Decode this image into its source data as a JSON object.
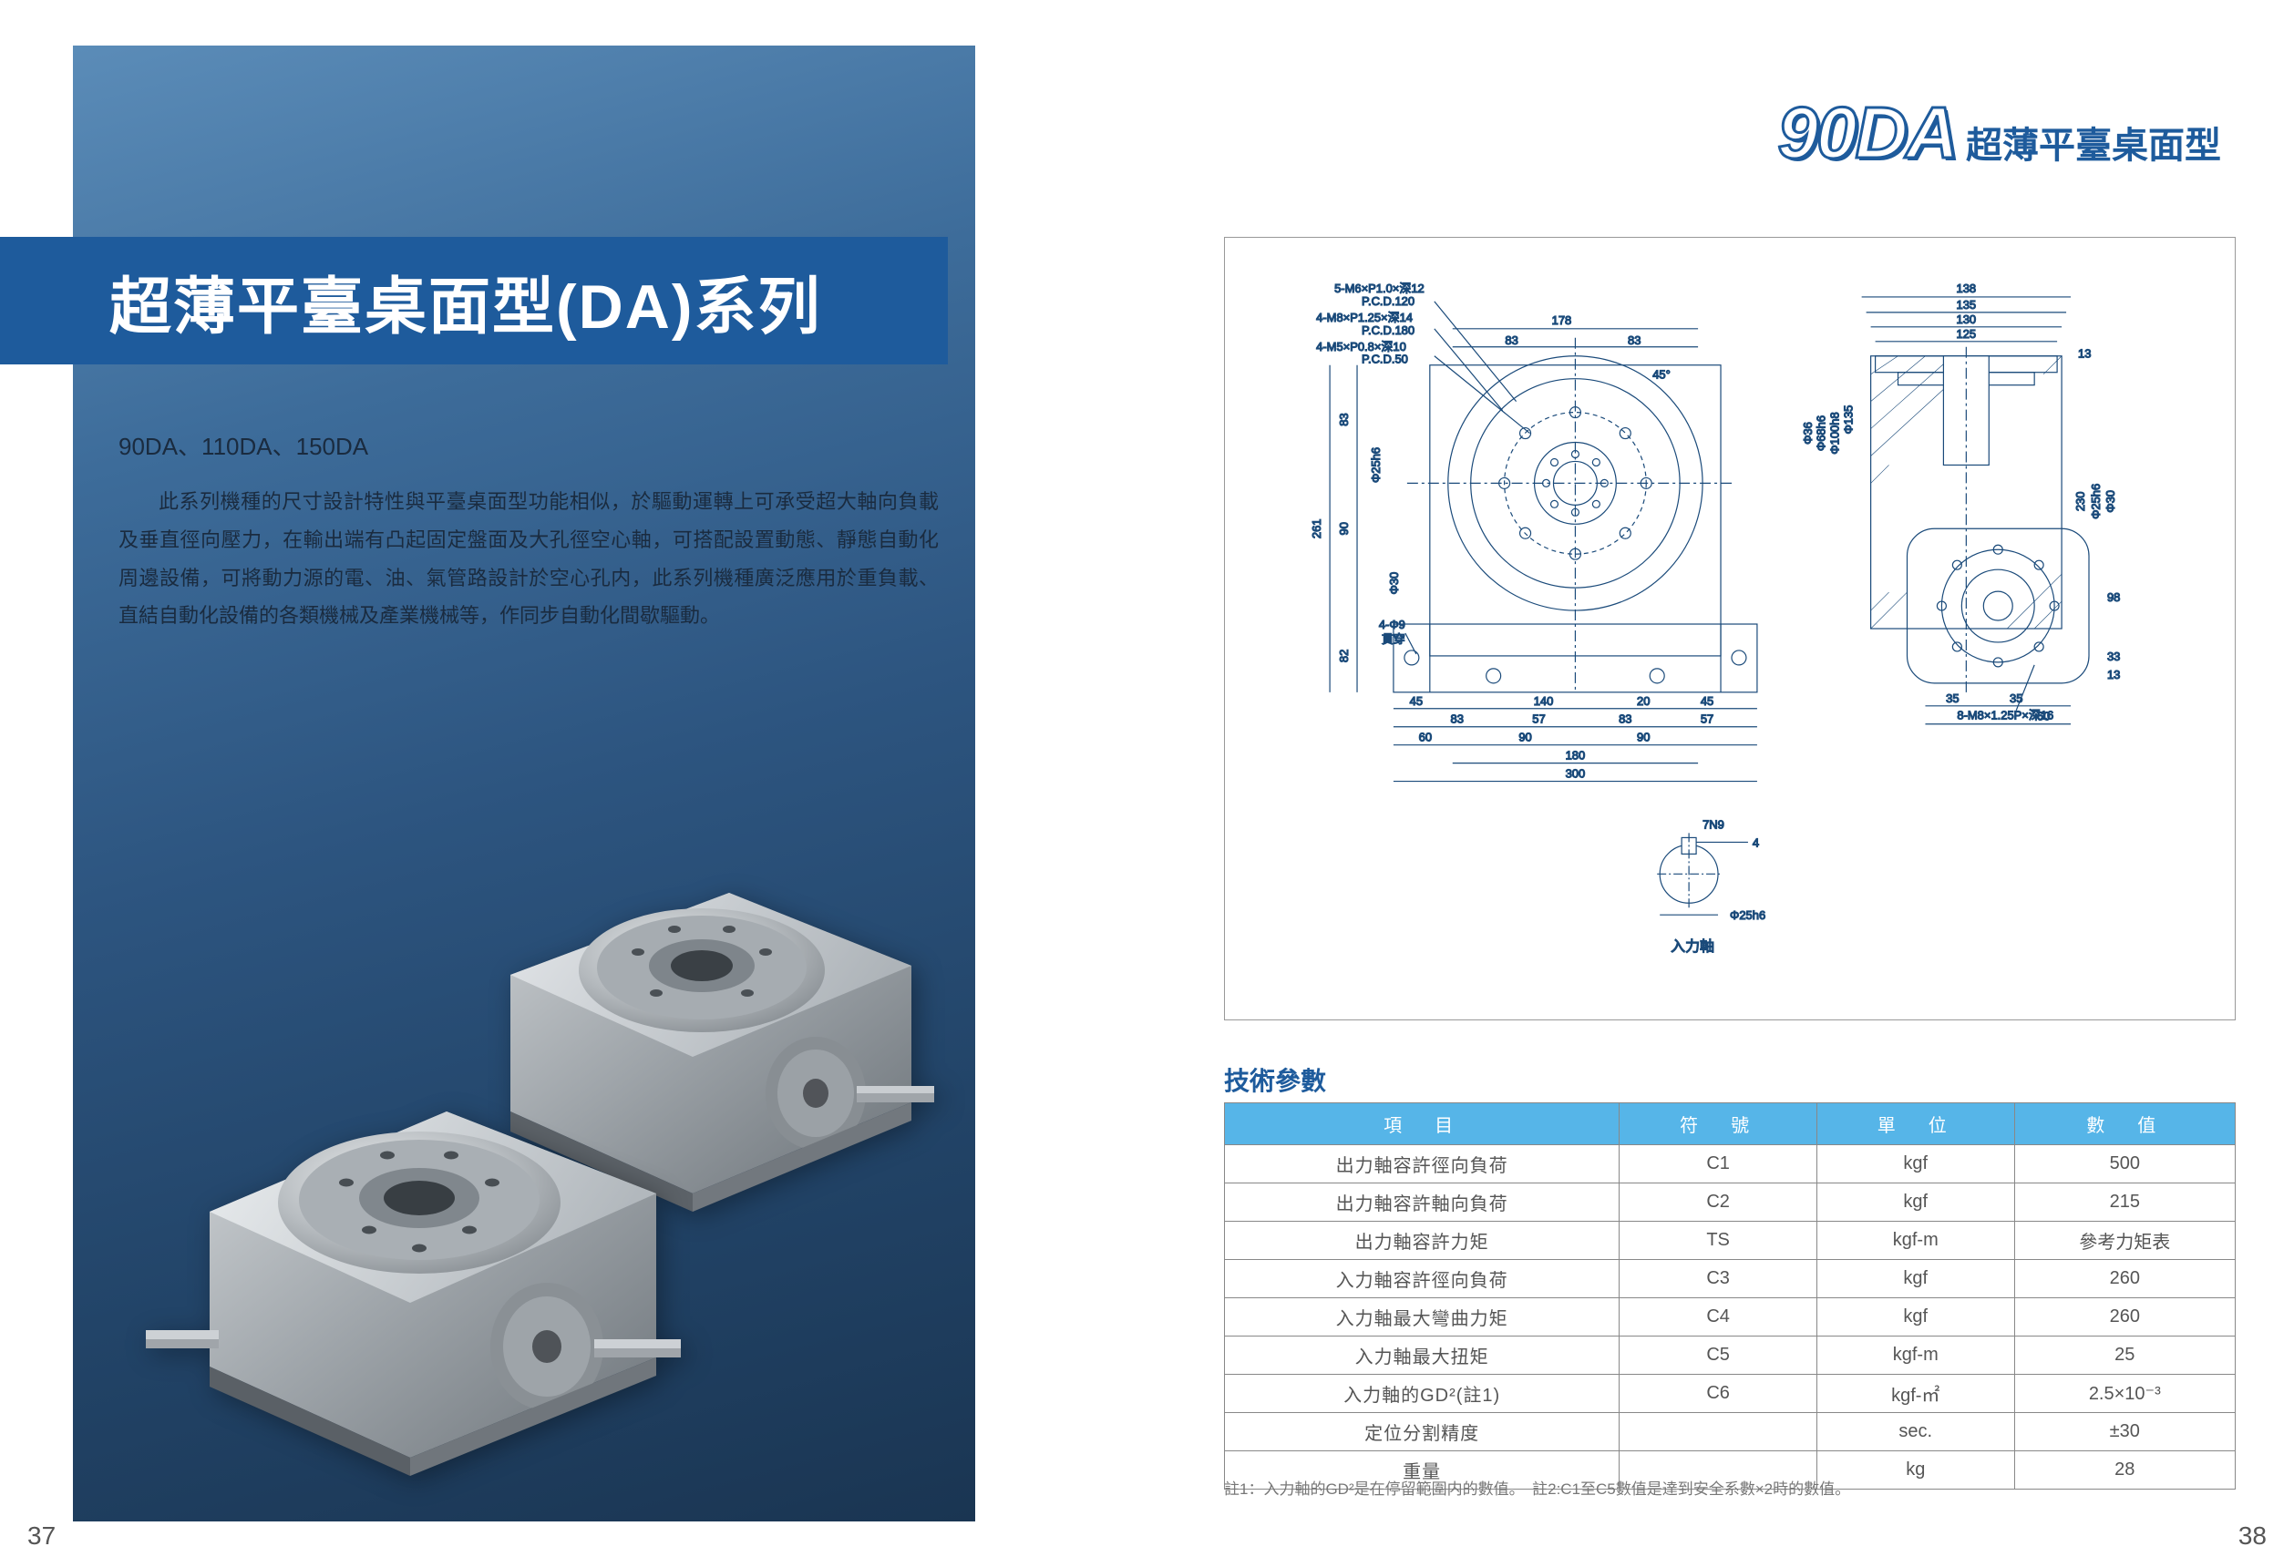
{
  "left": {
    "title": "超薄平臺桌面型(DA)系列",
    "subtitle": "90DA、110DA、150DA",
    "body": "此系列機種的尺寸設計特性與平臺桌面型功能相似，於驅動運轉上可承受超大軸向負載及垂直徑向壓力，在輸出端有凸起固定盤面及大孔徑空心軸，可搭配設置動態、靜態自動化周邊設備，可將動力源的電、油、氣管路設計於空心孔内，此系列機種廣泛應用於重負載、直結自動化設備的各類機械及產業機械等，作同步自動化間歇驅動。",
    "page_num": "37",
    "bg_gradient": [
      "#5b8cb8",
      "#1a3552"
    ],
    "title_band_color": "#1e5b9c"
  },
  "right": {
    "model_number": "90DA",
    "model_subtitle": "超薄平臺桌面型",
    "drawing": {
      "callouts": {
        "top1": "5-M6×P1.0×深12",
        "top1b": "P.C.D.120",
        "top2": "4-M8×P1.25×深14",
        "top2b": "P.C.D.180",
        "top3": "4-M5×P0.8×深10",
        "top3b": "P.C.D.50",
        "left_hole": "4-Φ9",
        "left_hole2": "貫穿",
        "right_call": "8-M8×1.25P×深16",
        "shaft_key": "7N9",
        "shaft_dia": "Φ25h6",
        "shaft_label": "入力軸"
      },
      "dims_top": {
        "full": "178",
        "half1": "83",
        "half2": "83",
        "angle": "45°"
      },
      "dims_left": {
        "a": "83",
        "b": "90",
        "c": "82",
        "total": "261",
        "dia1": "Φ25h6",
        "dia2": "Φ30"
      },
      "dims_bottom": {
        "r1": [
          "45",
          "140",
          "20",
          "45"
        ],
        "r2": [
          "83",
          "57",
          "83",
          "57"
        ],
        "r3": [
          "60",
          "90",
          "90"
        ],
        "r4": "180",
        "r5": "300"
      },
      "dims_right_top": {
        "a": "138",
        "b": "135",
        "c": "130",
        "d": "125",
        "e": "13"
      },
      "dims_right_side": {
        "a": "Φ135",
        "b": "Φ100h8",
        "c": "Φ68h6",
        "d": "Φ36",
        "e": "230",
        "f": "Φ25h6",
        "g": "Φ30"
      },
      "dims_right_bottom": {
        "a": "98",
        "b": "33",
        "c": "13",
        "d": "35",
        "e": "35",
        "f": "60"
      },
      "shaft_detail": {
        "key": "4"
      }
    },
    "params": {
      "title": "技術參數",
      "headers": [
        "項　目",
        "符　號",
        "單　位",
        "數　值"
      ],
      "rows": [
        [
          "出力軸容許徑向負荷",
          "C1",
          "kgf",
          "500"
        ],
        [
          "出力軸容許軸向負荷",
          "C2",
          "kgf",
          "215"
        ],
        [
          "出力軸容許力矩",
          "TS",
          "kgf-m",
          "參考力矩表"
        ],
        [
          "入力軸容許徑向負荷",
          "C3",
          "kgf",
          "260"
        ],
        [
          "入力軸最大彎曲力矩",
          "C4",
          "kgf",
          "260"
        ],
        [
          "入力軸最大扭矩",
          "C5",
          "kgf-m",
          "25"
        ],
        [
          "入力軸的GD²(註1)",
          "C6",
          "kgf-㎡",
          "2.5×10⁻³"
        ],
        [
          "定位分割精度",
          "",
          "sec.",
          "±30"
        ],
        [
          "重量",
          "",
          "kg",
          "28"
        ]
      ]
    },
    "footnote": "註1：入力軸的GD²是在停留範圍内的數值。　註2:C1至C5數值是達到安全系數×2時的數值。",
    "page_num": "38",
    "colors": {
      "brand": "#1e5b9c",
      "table_header": "#56b5e8",
      "border": "#888888",
      "text": "#555555"
    }
  }
}
